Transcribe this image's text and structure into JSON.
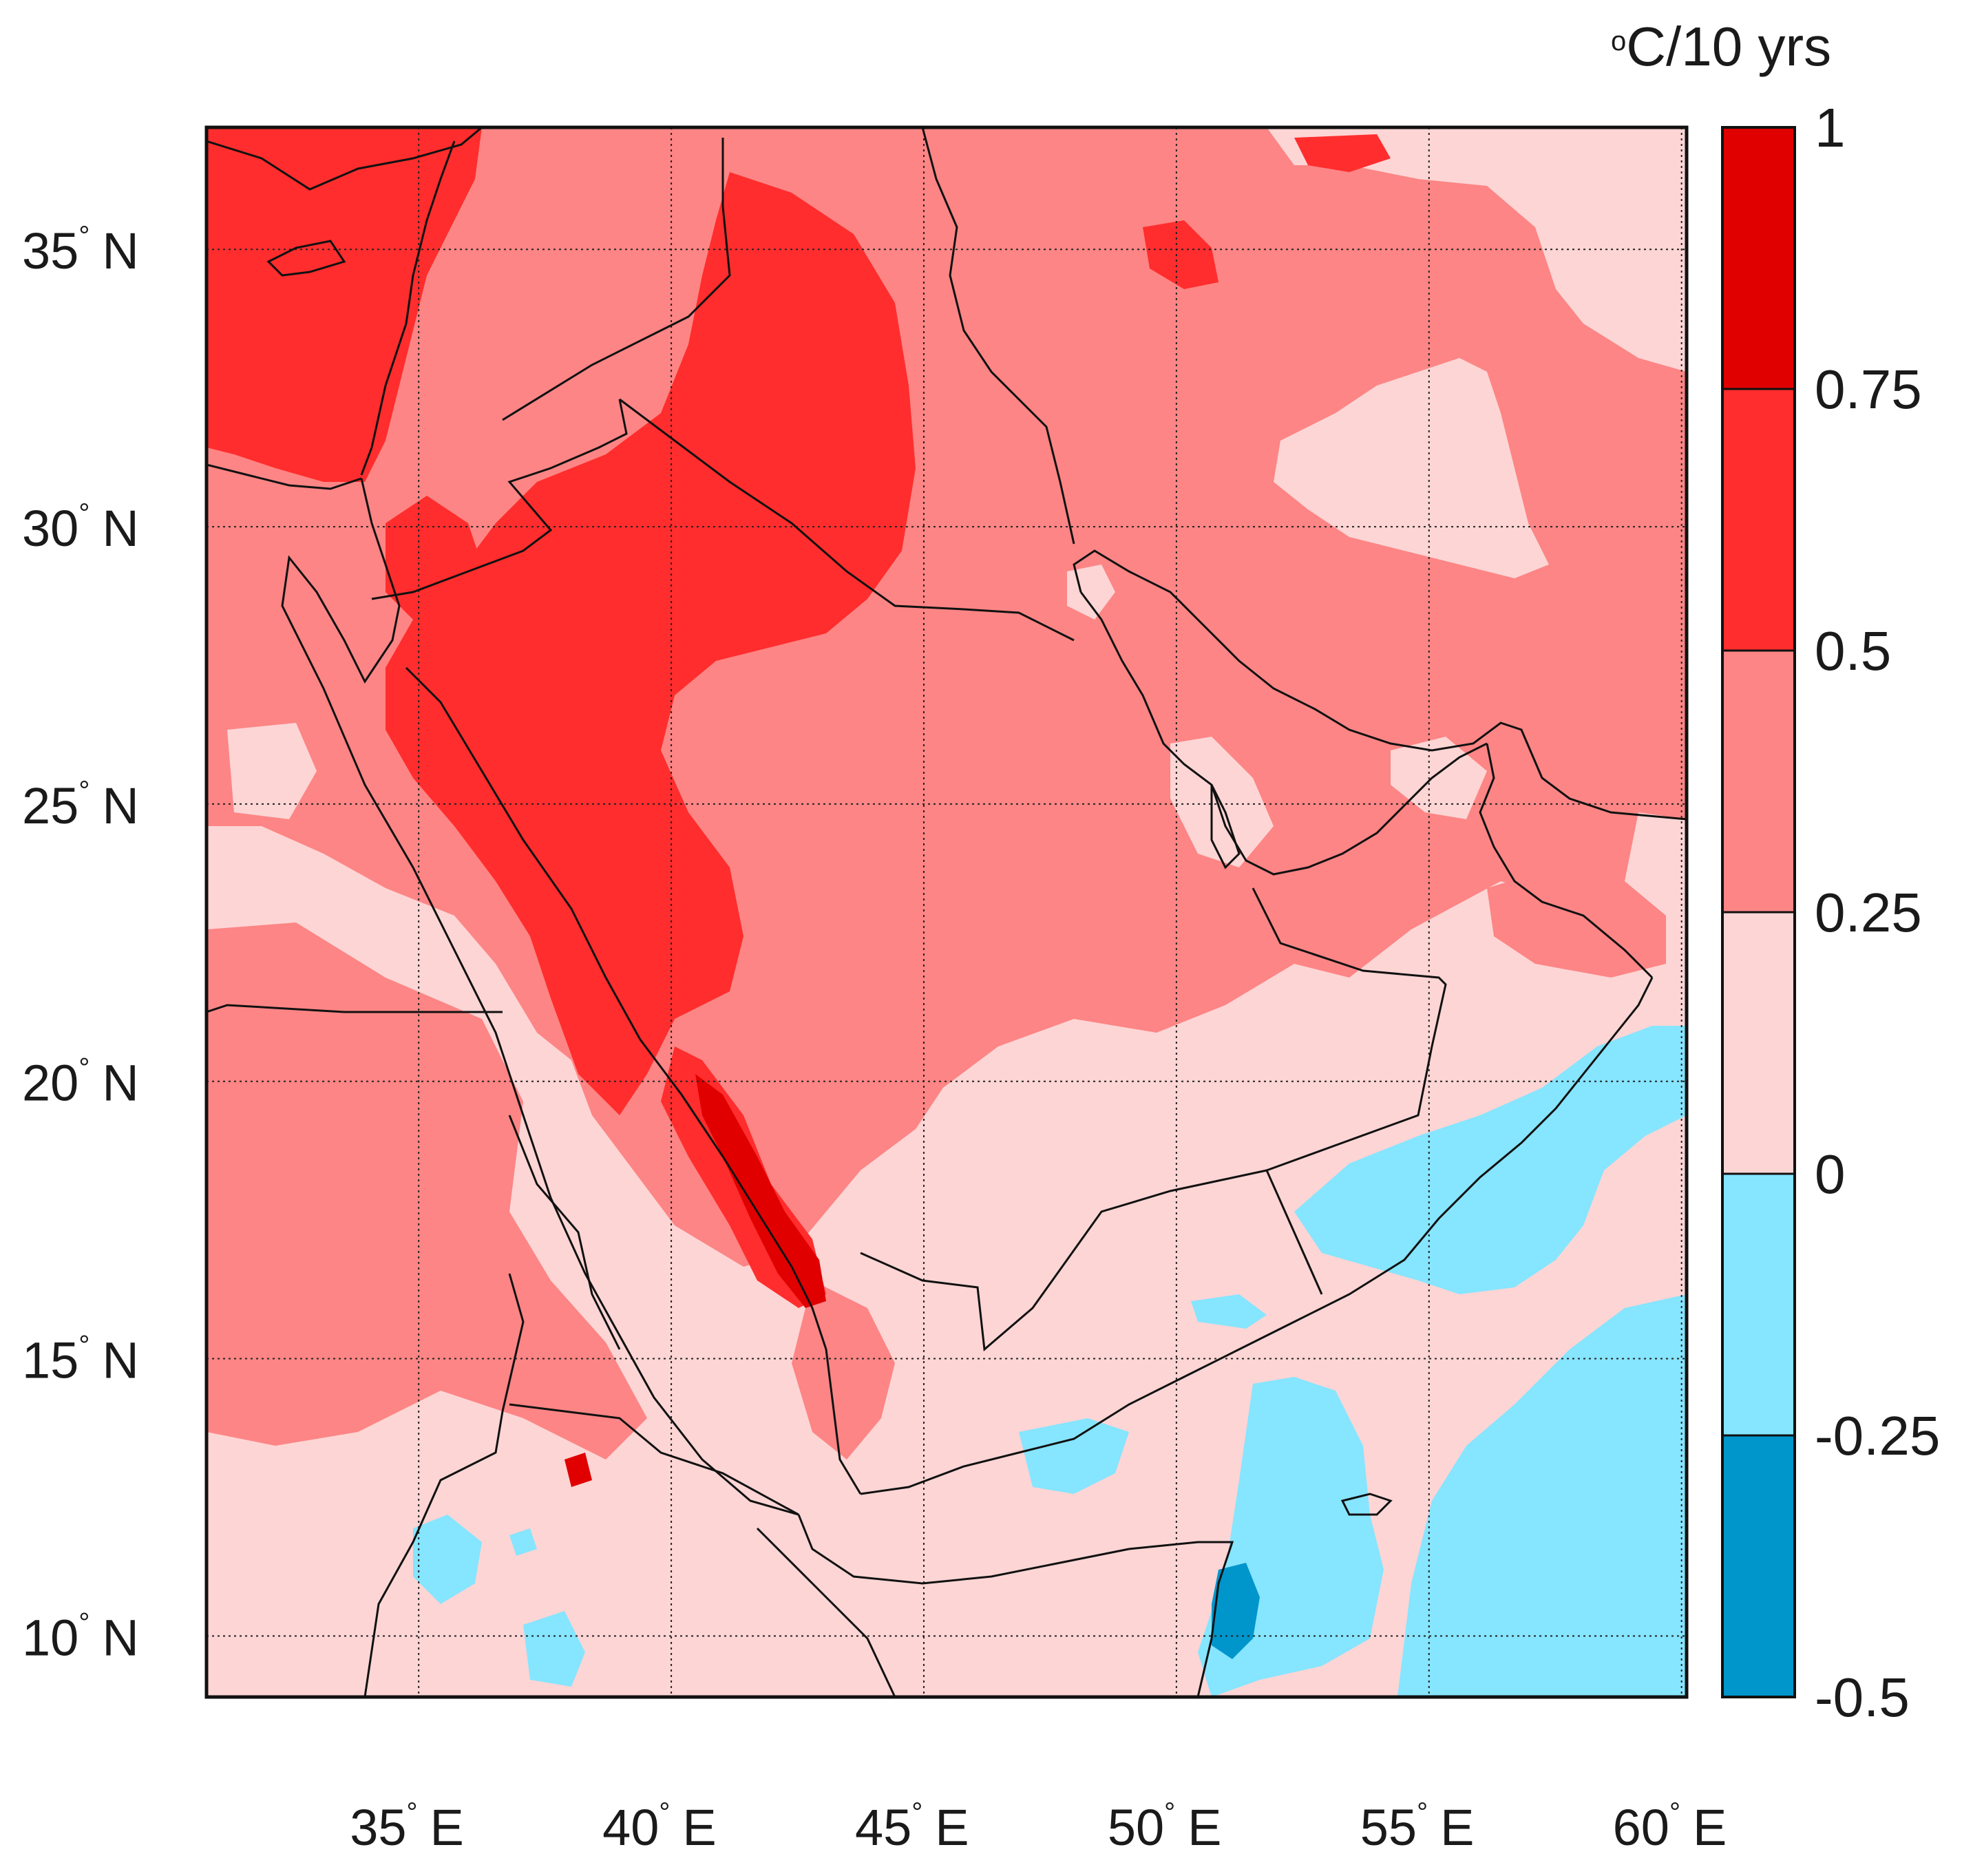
{
  "map": {
    "region": "Arabian Peninsula and surroundings",
    "lon_range": [
      30.8,
      60.1
    ],
    "lat_range": [
      8.9,
      37.2
    ],
    "lon_ticks": [
      {
        "value": 35,
        "num": "35",
        "hemi": "E"
      },
      {
        "value": 40,
        "num": "40",
        "hemi": "E"
      },
      {
        "value": 45,
        "num": "45",
        "hemi": "E"
      },
      {
        "value": 50,
        "num": "50",
        "hemi": "E"
      },
      {
        "value": 55,
        "num": "55",
        "hemi": "E"
      },
      {
        "value": 60,
        "num": "60",
        "hemi": "E"
      }
    ],
    "lat_ticks": [
      {
        "value": 35,
        "num": "35",
        "hemi": "N"
      },
      {
        "value": 30,
        "num": "30",
        "hemi": "N"
      },
      {
        "value": 25,
        "num": "25",
        "hemi": "N"
      },
      {
        "value": 20,
        "num": "20",
        "hemi": "N"
      },
      {
        "value": 15,
        "num": "15",
        "hemi": "N"
      },
      {
        "value": 10,
        "num": "10",
        "hemi": "N"
      }
    ],
    "gridlines": "dotted",
    "coastlines_and_borders": "black lines"
  },
  "colorbar": {
    "unit_label": "C/10 yrs",
    "unit_superscript": "o",
    "placement": "right",
    "levels": [
      {
        "label": "1",
        "value": 1
      },
      {
        "label": "0.75",
        "value": 0.75
      },
      {
        "label": "0.5",
        "value": 0.5
      },
      {
        "label": "0.25",
        "value": 0.25
      },
      {
        "label": "0",
        "value": 0
      },
      {
        "label": "-0.25",
        "value": -0.25
      },
      {
        "label": "-0.5",
        "value": -0.5
      }
    ],
    "bins": [
      {
        "range": "0.75 to 1",
        "color": "#e00000"
      },
      {
        "range": "0.5 to 0.75",
        "color": "#ff2d2d"
      },
      {
        "range": "0.25 to 0.5",
        "color": "#fd8585"
      },
      {
        "range": "0 to 0.25",
        "color": "#fdd5d5"
      },
      {
        "range": "-0.25 to 0",
        "color": "#86e5ff"
      },
      {
        "range": "-0.5 to -0.25",
        "color": "#0096cc"
      }
    ]
  },
  "colors": {
    "dark_red": "#e00000",
    "red": "#ff2d2d",
    "salmon": "#fd8585",
    "light_pink": "#fdd5d5",
    "light_blue": "#86e5ff",
    "blue": "#0096cc"
  }
}
